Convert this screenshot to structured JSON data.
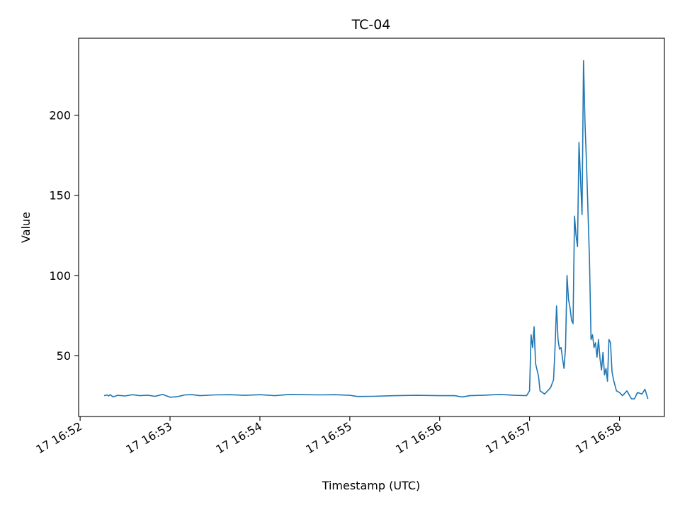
{
  "chart_data": {
    "type": "line",
    "title": "TC-04",
    "xlabel": "Timestamp (UTC)",
    "ylabel": "Value",
    "x_range": [
      "16:52:16",
      "16:58:19"
    ],
    "xlim": [
      "16:51:59",
      "16:58:30"
    ],
    "ylim": [
      12,
      248
    ],
    "x_ticks": [
      {
        "t": "16:52:00",
        "label": "17 16:52"
      },
      {
        "t": "16:53:00",
        "label": "17 16:53"
      },
      {
        "t": "16:54:00",
        "label": "17 16:54"
      },
      {
        "t": "16:55:00",
        "label": "17 16:55"
      },
      {
        "t": "16:56:00",
        "label": "17 16:56"
      },
      {
        "t": "16:57:00",
        "label": "17 16:57"
      },
      {
        "t": "16:58:00",
        "label": "17 16:58"
      }
    ],
    "y_ticks": [
      50,
      100,
      150,
      200
    ],
    "grid": false,
    "color": "#1f77b4",
    "series": [
      {
        "name": "",
        "points": [
          [
            "16:52:16",
            25
          ],
          [
            "16:52:18",
            25.5
          ],
          [
            "16:52:19",
            24.8
          ],
          [
            "16:52:20",
            25.6
          ],
          [
            "16:52:22",
            24.3
          ],
          [
            "16:52:25",
            25.2
          ],
          [
            "16:52:30",
            24.8
          ],
          [
            "16:52:35",
            25.6
          ],
          [
            "16:52:40",
            25
          ],
          [
            "16:52:45",
            25.3
          ],
          [
            "16:52:50",
            24.6
          ],
          [
            "16:52:55",
            25.8
          ],
          [
            "16:53:00",
            24
          ],
          [
            "16:53:05",
            24.4
          ],
          [
            "16:53:10",
            25.5
          ],
          [
            "16:53:15",
            25.6
          ],
          [
            "16:53:20",
            25
          ],
          [
            "16:53:30",
            25.5
          ],
          [
            "16:53:40",
            25.6
          ],
          [
            "16:53:50",
            25.2
          ],
          [
            "16:54:00",
            25.6
          ],
          [
            "16:54:10",
            25
          ],
          [
            "16:54:20",
            25.8
          ],
          [
            "16:54:30",
            25.6
          ],
          [
            "16:54:40",
            25.5
          ],
          [
            "16:54:50",
            25.6
          ],
          [
            "16:55:00",
            25.2
          ],
          [
            "16:55:05",
            24.5
          ],
          [
            "16:55:15",
            24.6
          ],
          [
            "16:55:30",
            25
          ],
          [
            "16:55:45",
            25.2
          ],
          [
            "16:56:00",
            25
          ],
          [
            "16:56:10",
            25
          ],
          [
            "16:56:15",
            24.2
          ],
          [
            "16:56:20",
            25
          ],
          [
            "16:56:30",
            25.3
          ],
          [
            "16:56:40",
            25.8
          ],
          [
            "16:56:50",
            25.2
          ],
          [
            "16:56:58",
            25
          ],
          [
            "16:57:00",
            28
          ],
          [
            "16:57:01",
            63
          ],
          [
            "16:57:02",
            55
          ],
          [
            "16:57:03",
            68
          ],
          [
            "16:57:04",
            45
          ],
          [
            "16:57:06",
            37
          ],
          [
            "16:57:07",
            28
          ],
          [
            "16:57:10",
            26
          ],
          [
            "16:57:12",
            28
          ],
          [
            "16:57:14",
            30
          ],
          [
            "16:57:16",
            35
          ],
          [
            "16:57:17",
            55
          ],
          [
            "16:57:18",
            81
          ],
          [
            "16:57:19",
            60
          ],
          [
            "16:57:20",
            54
          ],
          [
            "16:57:21",
            55
          ],
          [
            "16:57:22",
            48
          ],
          [
            "16:57:23",
            42
          ],
          [
            "16:57:24",
            55
          ],
          [
            "16:57:25",
            100
          ],
          [
            "16:57:26",
            85
          ],
          [
            "16:57:27",
            80
          ],
          [
            "16:57:28",
            72
          ],
          [
            "16:57:29",
            70
          ],
          [
            "16:57:30",
            137
          ],
          [
            "16:57:31",
            125
          ],
          [
            "16:57:32",
            118
          ],
          [
            "16:57:33",
            183
          ],
          [
            "16:57:34",
            160
          ],
          [
            "16:57:35",
            138
          ],
          [
            "16:57:36",
            234
          ],
          [
            "16:57:37",
            195
          ],
          [
            "16:57:38",
            170
          ],
          [
            "16:57:39",
            140
          ],
          [
            "16:57:40",
            110
          ],
          [
            "16:57:41",
            60
          ],
          [
            "16:57:42",
            63
          ],
          [
            "16:57:43",
            55
          ],
          [
            "16:57:44",
            58
          ],
          [
            "16:57:45",
            49
          ],
          [
            "16:57:46",
            60
          ],
          [
            "16:57:47",
            48
          ],
          [
            "16:57:48",
            41
          ],
          [
            "16:57:49",
            52
          ],
          [
            "16:57:50",
            38
          ],
          [
            "16:57:51",
            42
          ],
          [
            "16:57:52",
            34
          ],
          [
            "16:57:53",
            60
          ],
          [
            "16:57:54",
            58
          ],
          [
            "16:57:55",
            40
          ],
          [
            "16:57:56",
            35
          ],
          [
            "16:57:58",
            28
          ],
          [
            "16:58:00",
            27
          ],
          [
            "16:58:02",
            25
          ],
          [
            "16:58:05",
            28
          ],
          [
            "16:58:08",
            23
          ],
          [
            "16:58:10",
            23
          ],
          [
            "16:58:12",
            27
          ],
          [
            "16:58:15",
            26
          ],
          [
            "16:58:17",
            29
          ],
          [
            "16:58:18",
            26
          ],
          [
            "16:58:19",
            23
          ]
        ]
      }
    ]
  }
}
